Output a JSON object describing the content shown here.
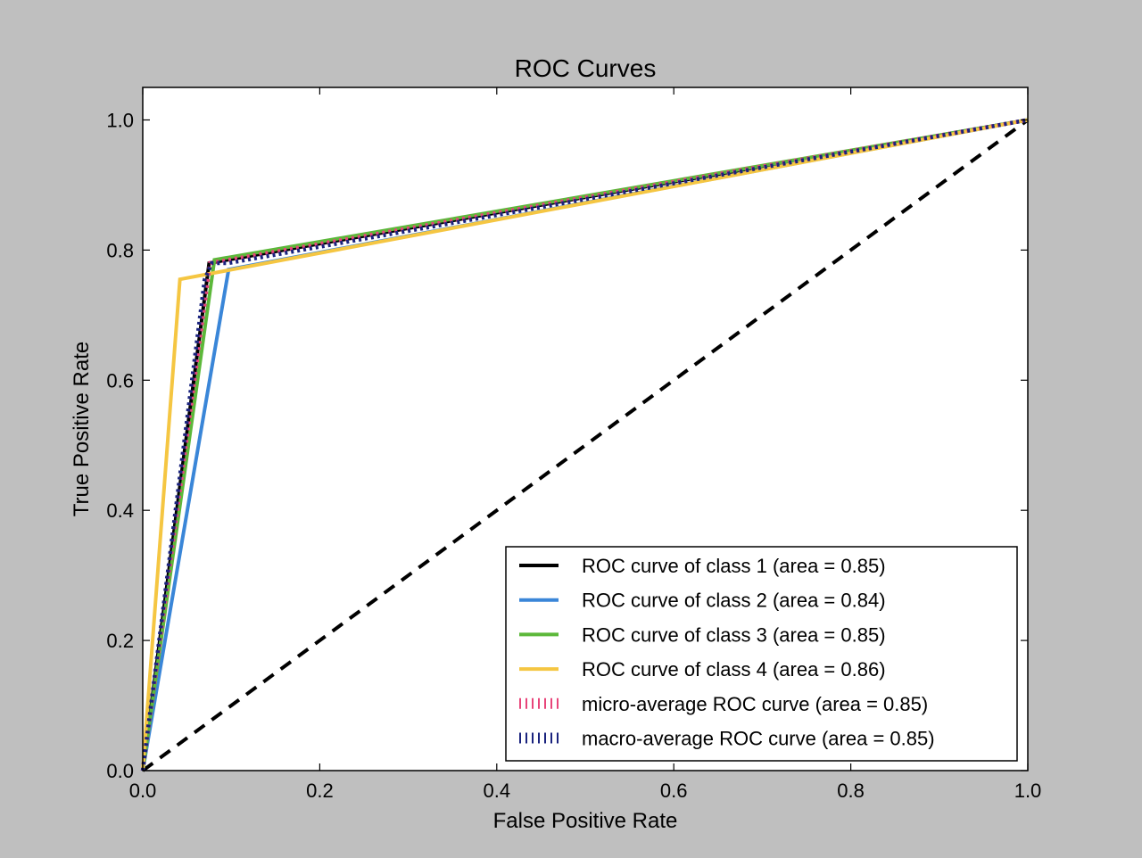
{
  "chart_data": {
    "type": "line",
    "title": "ROC Curves",
    "xlabel": "False Positive Rate",
    "ylabel": "True Positive Rate",
    "xlim": [
      0.0,
      1.0
    ],
    "ylim": [
      0.0,
      1.05
    ],
    "xticks": [
      "0.0",
      "0.2",
      "0.4",
      "0.6",
      "0.8",
      "1.0"
    ],
    "yticks": [
      "0.0",
      "0.2",
      "0.4",
      "0.6",
      "0.8",
      "1.0"
    ],
    "grid": false,
    "legend_position": "lower-right",
    "series": [
      {
        "name": "ROC curve of class 1 (area = 0.85)",
        "color": "#000000",
        "style": "solid",
        "x": [
          0.0,
          0.075,
          1.0
        ],
        "y": [
          0.0,
          0.78,
          1.0
        ]
      },
      {
        "name": "ROC curve of class 2 (area = 0.84)",
        "color": "#3a86d8",
        "style": "solid",
        "x": [
          0.0,
          0.097,
          1.0
        ],
        "y": [
          0.0,
          0.77,
          1.0
        ]
      },
      {
        "name": "ROC curve of class 3 (area = 0.85)",
        "color": "#5cb83a",
        "style": "solid",
        "x": [
          0.0,
          0.081,
          1.0
        ],
        "y": [
          0.0,
          0.785,
          1.0
        ]
      },
      {
        "name": "ROC curve of class 4 (area = 0.86)",
        "color": "#f5c642",
        "style": "solid",
        "x": [
          0.0,
          0.042,
          1.0
        ],
        "y": [
          0.0,
          0.755,
          1.0
        ]
      },
      {
        "name": "micro-average ROC curve (area = 0.85)",
        "color": "#e8457a",
        "style": "dotted",
        "x": [
          0.0,
          0.076,
          1.0
        ],
        "y": [
          0.0,
          0.78,
          1.0
        ]
      },
      {
        "name": "macro-average ROC curve (area = 0.85)",
        "color": "#1a237e",
        "style": "dotted",
        "x": [
          0.0,
          0.07,
          0.078,
          0.097,
          1.0
        ],
        "y": [
          0.0,
          0.755,
          0.78,
          0.78,
          1.0
        ]
      }
    ],
    "reference_line": {
      "color": "#000000",
      "style": "dashed",
      "x": [
        0.0,
        1.0
      ],
      "y": [
        0.0,
        1.0
      ]
    }
  }
}
